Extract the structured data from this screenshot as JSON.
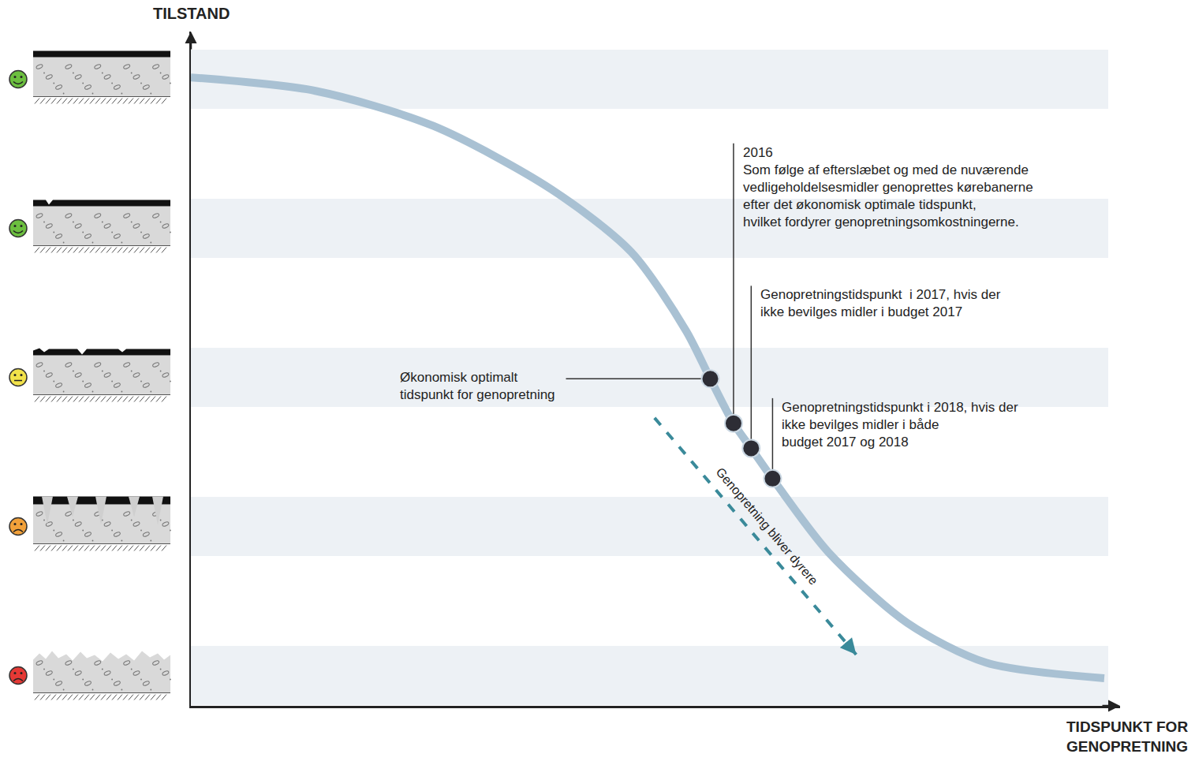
{
  "chart_data": {
    "type": "line",
    "y_label": "TILSTAND",
    "x_label": "TIDSPUNKT FOR\nGENOPRETNING",
    "x": [
      0,
      13.4,
      26.1,
      38.8,
      47.4,
      53.3,
      55.9,
      58.4,
      60.3,
      62.6,
      68.6,
      77.1,
      85.6,
      98.3
    ],
    "values": [
      93.2,
      91.2,
      86.0,
      76.6,
      67.3,
      55.6,
      48.5,
      41.9,
      38.2,
      33.7,
      22.8,
      12.3,
      6.4,
      4.1
    ],
    "color": "#a9c1d3",
    "xlim": [
      0,
      100
    ],
    "ylim": [
      0,
      100
    ],
    "xticks": [],
    "yticks": [],
    "tick_labels": false,
    "grid": false,
    "marker": "circle",
    "points": [
      {
        "x": 55.9,
        "y": 48.5,
        "label": "Økonomisk optimalt\ntidspunkt for genopretning"
      },
      {
        "x": 58.4,
        "y": 41.9,
        "label": "2016\nSom følge af efterslæbet og med de nuværende\nvedligeholdelsesmidler genoprettes kørebanerne\nefter det økonomisk optimale tidspunkt,\nhvilket fordyrer genopretningsomkostningerne."
      },
      {
        "x": 60.3,
        "y": 38.2,
        "label": "Genopretningstidspunkt  i 2017, hvis der\nikke bevilges midler i budget 2017"
      },
      {
        "x": 62.6,
        "y": 33.7,
        "label": "Genopretningstidspunkt i 2018, hvis der\nikke bevilges midler i både\nbudget 2017 og 2018"
      }
    ],
    "arrow": {
      "x": [
        49.9,
        71.6
      ],
      "y": [
        42.7,
        7.6
      ],
      "label": "Genopretning bliver dyrere",
      "color": "#3a8a9a",
      "line_style": "dashed"
    }
  }
}
